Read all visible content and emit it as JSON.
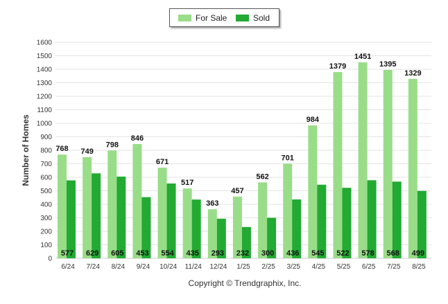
{
  "chart_data": {
    "type": "bar",
    "categories": [
      "6/24",
      "7/24",
      "8/24",
      "9/24",
      "10/24",
      "11/24",
      "12/24",
      "1/25",
      "2/25",
      "3/25",
      "4/25",
      "5/25",
      "6/25",
      "7/25",
      "8/25"
    ],
    "series": [
      {
        "name": "For Sale",
        "color": "#99dd88",
        "values": [
          768,
          749,
          798,
          846,
          671,
          517,
          363,
          457,
          562,
          701,
          984,
          1379,
          1451,
          1395,
          1329
        ]
      },
      {
        "name": "Sold",
        "color": "#22aa33",
        "values": [
          577,
          629,
          605,
          453,
          554,
          435,
          293,
          232,
          300,
          436,
          545,
          522,
          578,
          568,
          499
        ]
      }
    ],
    "ylabel": "Number of Homes",
    "ylim": [
      0,
      1600
    ],
    "yticks": [
      0,
      100,
      200,
      300,
      400,
      500,
      600,
      700,
      800,
      900,
      1000,
      1100,
      1200,
      1300,
      1400,
      1500,
      1600
    ],
    "grid": true,
    "legend": "top-center"
  },
  "footer": {
    "copyright": "Copyright © Trendgraphix, Inc."
  }
}
